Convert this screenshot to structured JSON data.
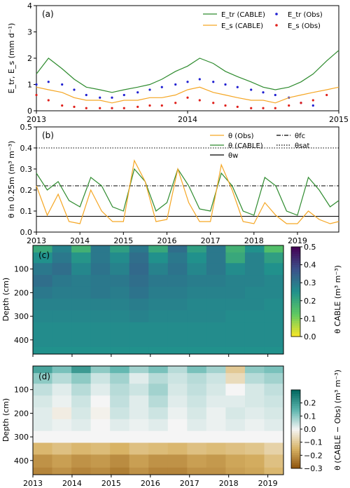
{
  "chart_data": [
    {
      "type": "line",
      "panel_label": "(a)",
      "ylabel": "E_tr, E_s (mm d⁻¹)",
      "ylim": [
        0,
        4
      ],
      "yticks": [
        0,
        1,
        2,
        3,
        4
      ],
      "xlim": [
        2013.0,
        2015.0
      ],
      "xticks": [
        {
          "x": 2013,
          "label": "2013"
        },
        {
          "x": 2014,
          "label": "2014"
        },
        {
          "x": 2015,
          "label": "2015"
        }
      ],
      "legend": [
        {
          "label": "E_tr (CABLE)",
          "color": "#2e8b2e",
          "kind": "line"
        },
        {
          "label": "E_tr (Obs)",
          "color": "#1f1fd1",
          "kind": "dots"
        },
        {
          "label": "E_s (CABLE)",
          "color": "#f5a623",
          "kind": "line"
        },
        {
          "label": "E_s (Obs)",
          "color": "#e0201b",
          "kind": "dots"
        }
      ],
      "series": [
        {
          "name": "E_tr (CABLE)",
          "color": "#2e8b2e",
          "x": [
            2013.0,
            2013.08,
            2013.17,
            2013.25,
            2013.33,
            2013.42,
            2013.5,
            2013.58,
            2013.67,
            2013.75,
            2013.83,
            2013.92,
            2014.0,
            2014.08,
            2014.17,
            2014.25,
            2014.33,
            2014.42,
            2014.5,
            2014.58,
            2014.67,
            2014.75,
            2014.83,
            2014.92,
            2015.0
          ],
          "y": [
            1.4,
            2.0,
            1.6,
            1.2,
            0.9,
            0.8,
            0.7,
            0.8,
            0.9,
            1.0,
            1.2,
            1.5,
            1.7,
            2.0,
            1.8,
            1.5,
            1.3,
            1.1,
            0.9,
            0.8,
            0.9,
            1.1,
            1.4,
            1.9,
            2.3
          ]
        },
        {
          "name": "E_tr (Obs)",
          "color": "#1f1fd1",
          "x": [
            2013.0,
            2013.08,
            2013.17,
            2013.25,
            2013.33,
            2013.42,
            2013.5,
            2013.58,
            2013.67,
            2013.75,
            2013.83,
            2013.92,
            2014.0,
            2014.08,
            2014.17,
            2014.25,
            2014.33,
            2014.42,
            2014.5,
            2014.58,
            2014.67,
            2014.75,
            2014.83
          ],
          "y": [
            1.0,
            1.1,
            1.0,
            0.8,
            0.6,
            0.5,
            0.5,
            0.6,
            0.7,
            0.8,
            0.9,
            1.0,
            1.1,
            1.2,
            1.1,
            1.0,
            0.9,
            0.8,
            0.7,
            0.6,
            0.5,
            0.3,
            0.2
          ]
        },
        {
          "name": "E_s (CABLE)",
          "color": "#f5a623",
          "x": [
            2013.0,
            2013.08,
            2013.17,
            2013.25,
            2013.33,
            2013.42,
            2013.5,
            2013.58,
            2013.67,
            2013.75,
            2013.83,
            2013.92,
            2014.0,
            2014.08,
            2014.17,
            2014.25,
            2014.33,
            2014.42,
            2014.5,
            2014.58,
            2014.67,
            2014.75,
            2014.83,
            2014.92,
            2015.0
          ],
          "y": [
            0.9,
            0.8,
            0.7,
            0.5,
            0.4,
            0.4,
            0.3,
            0.4,
            0.4,
            0.5,
            0.5,
            0.6,
            0.8,
            0.9,
            0.7,
            0.6,
            0.5,
            0.4,
            0.4,
            0.3,
            0.5,
            0.6,
            0.7,
            0.8,
            0.9
          ]
        },
        {
          "name": "E_s (Obs)",
          "color": "#e0201b",
          "x": [
            2013.0,
            2013.08,
            2013.17,
            2013.25,
            2013.33,
            2013.42,
            2013.5,
            2013.58,
            2013.67,
            2013.75,
            2013.83,
            2013.92,
            2014.0,
            2014.08,
            2014.17,
            2014.25,
            2014.33,
            2014.42,
            2014.5,
            2014.58,
            2014.67,
            2014.75,
            2014.83,
            2014.92
          ],
          "y": [
            0.6,
            0.4,
            0.2,
            0.15,
            0.1,
            0.1,
            0.1,
            0.1,
            0.15,
            0.2,
            0.2,
            0.3,
            0.5,
            0.4,
            0.3,
            0.2,
            0.15,
            0.1,
            0.1,
            0.1,
            0.2,
            0.3,
            0.4,
            0.6
          ]
        }
      ]
    },
    {
      "type": "line",
      "panel_label": "(b)",
      "ylabel": "θ in 0.25m (m³ m⁻³)",
      "ylim": [
        0,
        0.5
      ],
      "yticks": [
        0,
        0.1,
        0.2,
        0.3,
        0.4,
        0.5
      ],
      "ytick_labels": [
        "0.0",
        "0.1",
        "0.2",
        "0.3",
        "0.4",
        "0.5"
      ],
      "xlim": [
        2013.0,
        2019.95
      ],
      "xticks": [
        {
          "x": 2013,
          "label": "2013"
        },
        {
          "x": 2014,
          "label": "2014"
        },
        {
          "x": 2015,
          "label": "2015"
        },
        {
          "x": 2016,
          "label": "2016"
        },
        {
          "x": 2017,
          "label": "2017"
        },
        {
          "x": 2018,
          "label": "2018"
        },
        {
          "x": 2019,
          "label": "2019"
        }
      ],
      "reference_lines": [
        {
          "name": "θfc",
          "y": 0.22,
          "style": "dashdot"
        },
        {
          "name": "θsat",
          "y": 0.4,
          "style": "dotted"
        },
        {
          "name": "θw",
          "y": 0.075,
          "style": "solid"
        }
      ],
      "legend": [
        {
          "label": "θ (Obs)",
          "color": "#f5a623",
          "kind": "line"
        },
        {
          "label": "θfc",
          "color": "#000000",
          "kind": "dashdot"
        },
        {
          "label": "θ (CABLE)",
          "color": "#2e8b2e",
          "kind": "line"
        },
        {
          "label": "θsat",
          "color": "#000000",
          "kind": "dotted"
        },
        {
          "label": "θw",
          "color": "#000000",
          "kind": "solid"
        }
      ],
      "series": [
        {
          "name": "θ (CABLE)",
          "color": "#2e8b2e",
          "x": [
            2013.0,
            2013.25,
            2013.5,
            2013.75,
            2014.0,
            2014.25,
            2014.5,
            2014.75,
            2015.0,
            2015.25,
            2015.5,
            2015.75,
            2016.0,
            2016.25,
            2016.5,
            2016.75,
            2017.0,
            2017.25,
            2017.5,
            2017.75,
            2018.0,
            2018.25,
            2018.5,
            2018.75,
            2019.0,
            2019.25,
            2019.5,
            2019.75,
            2019.95
          ],
          "y": [
            0.28,
            0.2,
            0.24,
            0.15,
            0.12,
            0.26,
            0.22,
            0.12,
            0.1,
            0.3,
            0.24,
            0.1,
            0.14,
            0.3,
            0.22,
            0.11,
            0.1,
            0.28,
            0.22,
            0.1,
            0.08,
            0.26,
            0.22,
            0.1,
            0.08,
            0.26,
            0.2,
            0.12,
            0.15
          ]
        },
        {
          "name": "θ (Obs)",
          "color": "#f5a623",
          "x": [
            2013.0,
            2013.25,
            2013.5,
            2013.75,
            2014.0,
            2014.25,
            2014.5,
            2014.75,
            2015.0,
            2015.25,
            2015.5,
            2015.75,
            2016.0,
            2016.25,
            2016.5,
            2016.75,
            2017.0,
            2017.25,
            2017.5,
            2017.75,
            2018.0,
            2018.25,
            2018.5,
            2018.75,
            2019.0,
            2019.25,
            2019.5,
            2019.75,
            2019.95
          ],
          "y": [
            0.22,
            0.08,
            0.18,
            0.05,
            0.04,
            0.2,
            0.1,
            0.05,
            0.05,
            0.34,
            0.24,
            0.05,
            0.06,
            0.3,
            0.14,
            0.05,
            0.05,
            0.32,
            0.2,
            0.05,
            0.04,
            0.14,
            0.08,
            0.04,
            0.04,
            0.1,
            0.06,
            0.04,
            0.05
          ]
        }
      ]
    },
    {
      "type": "heatmap",
      "panel_label": "(c)",
      "ylabel": "Depth (cm)",
      "yticks": [
        100,
        200,
        300,
        400
      ],
      "ylim": [
        460,
        0
      ],
      "xlim": [
        2013.0,
        2019.4
      ],
      "xticks": [
        2013,
        2014,
        2015,
        2016,
        2017,
        2018,
        2019
      ],
      "colorbar": {
        "label": "θ CABLE (m³ m⁻³)",
        "min": 0.0,
        "max": 0.5,
        "ticks": [
          0.0,
          0.1,
          0.2,
          0.3,
          0.4,
          0.5
        ],
        "tick_labels": [
          "0.0",
          "0.1",
          "0.2",
          "0.3",
          "0.4",
          "0.5"
        ],
        "colormap": "viridis_r"
      },
      "depths": [
        10,
        50,
        100,
        150,
        200,
        250,
        300,
        350,
        400,
        460
      ],
      "values": [
        [
          0.2,
          0.28,
          0.18,
          0.3,
          0.22,
          0.3,
          0.2,
          0.32,
          0.22,
          0.3,
          0.18,
          0.25,
          0.15
        ],
        [
          0.25,
          0.3,
          0.24,
          0.3,
          0.26,
          0.32,
          0.25,
          0.3,
          0.25,
          0.3,
          0.2,
          0.28,
          0.22
        ],
        [
          0.3,
          0.32,
          0.27,
          0.31,
          0.28,
          0.33,
          0.28,
          0.31,
          0.27,
          0.3,
          0.26,
          0.28,
          0.25
        ],
        [
          0.32,
          0.3,
          0.29,
          0.3,
          0.3,
          0.32,
          0.3,
          0.3,
          0.29,
          0.29,
          0.28,
          0.28,
          0.27
        ],
        [
          0.3,
          0.29,
          0.29,
          0.3,
          0.29,
          0.31,
          0.29,
          0.29,
          0.28,
          0.28,
          0.28,
          0.27,
          0.27
        ],
        [
          0.28,
          0.28,
          0.28,
          0.28,
          0.28,
          0.29,
          0.28,
          0.28,
          0.27,
          0.27,
          0.27,
          0.27,
          0.26
        ],
        [
          0.27,
          0.27,
          0.27,
          0.27,
          0.27,
          0.28,
          0.27,
          0.27,
          0.27,
          0.27,
          0.26,
          0.26,
          0.26
        ],
        [
          0.26,
          0.26,
          0.26,
          0.26,
          0.26,
          0.26,
          0.26,
          0.26,
          0.26,
          0.26,
          0.26,
          0.26,
          0.26
        ],
        [
          0.26,
          0.26,
          0.26,
          0.26,
          0.26,
          0.26,
          0.26,
          0.26,
          0.26,
          0.26,
          0.26,
          0.26,
          0.26
        ],
        [
          0.25,
          0.25,
          0.25,
          0.25,
          0.25,
          0.25,
          0.25,
          0.25,
          0.25,
          0.25,
          0.25,
          0.25,
          0.25
        ]
      ]
    },
    {
      "type": "heatmap",
      "panel_label": "(d)",
      "ylabel": "Depth (cm)",
      "yticks": [
        100,
        200,
        300,
        400
      ],
      "ylim": [
        460,
        0
      ],
      "xlim": [
        2013.0,
        2019.4
      ],
      "xticks": [
        {
          "x": 2013,
          "label": "2013"
        },
        {
          "x": 2014,
          "label": "2014"
        },
        {
          "x": 2015,
          "label": "2015"
        },
        {
          "x": 2016,
          "label": "2016"
        },
        {
          "x": 2017,
          "label": "2017"
        },
        {
          "x": 2018,
          "label": "2018"
        },
        {
          "x": 2019,
          "label": "2019"
        }
      ],
      "colorbar": {
        "label": "θ (CABLE − Obs) (m³ m⁻³)",
        "min": -0.3,
        "max": 0.3,
        "ticks": [
          -0.3,
          -0.2,
          -0.1,
          0.0,
          0.1,
          0.2
        ],
        "tick_labels": [
          "−0.3",
          "−0.2",
          "−0.1",
          "0.0",
          "0.1",
          "0.2"
        ],
        "colormap": "BrBG"
      },
      "depths": [
        10,
        50,
        100,
        150,
        200,
        250,
        300,
        350,
        400,
        460
      ],
      "values": [
        [
          0.18,
          0.12,
          0.2,
          0.1,
          0.14,
          0.08,
          0.12,
          0.06,
          0.12,
          0.08,
          -0.1,
          0.1,
          0.12
        ],
        [
          0.1,
          0.06,
          0.1,
          0.04,
          0.08,
          0.02,
          0.06,
          0.04,
          0.06,
          0.04,
          -0.06,
          0.06,
          0.08
        ],
        [
          0.05,
          0.02,
          0.06,
          0.02,
          0.06,
          0.04,
          0.08,
          0.03,
          0.05,
          0.03,
          0.0,
          0.03,
          0.05
        ],
        [
          0.03,
          0.01,
          0.04,
          0.0,
          0.05,
          0.02,
          0.06,
          0.02,
          0.04,
          0.02,
          0.02,
          0.03,
          0.04
        ],
        [
          0.02,
          -0.02,
          0.03,
          -0.01,
          0.04,
          0.02,
          0.04,
          0.01,
          0.03,
          0.01,
          0.03,
          0.02,
          0.03
        ],
        [
          0.02,
          0.01,
          0.02,
          0.0,
          0.02,
          0.01,
          0.02,
          0.0,
          0.02,
          0.01,
          0.02,
          0.01,
          0.02
        ],
        [
          0.0,
          0.0,
          0.0,
          0.0,
          0.0,
          0.0,
          0.0,
          0.0,
          0.0,
          0.0,
          0.0,
          0.0,
          0.0
        ],
        [
          -0.14,
          -0.12,
          -0.14,
          -0.13,
          -0.15,
          -0.12,
          -0.13,
          -0.14,
          -0.12,
          -0.13,
          -0.12,
          -0.11,
          -0.08
        ],
        [
          -0.2,
          -0.18,
          -0.2,
          -0.19,
          -0.21,
          -0.18,
          -0.2,
          -0.2,
          -0.18,
          -0.19,
          -0.17,
          -0.16,
          -0.12
        ],
        [
          -0.22,
          -0.2,
          -0.22,
          -0.21,
          -0.23,
          -0.2,
          -0.22,
          -0.22,
          -0.2,
          -0.2,
          -0.18,
          -0.17,
          -0.14
        ]
      ]
    }
  ]
}
